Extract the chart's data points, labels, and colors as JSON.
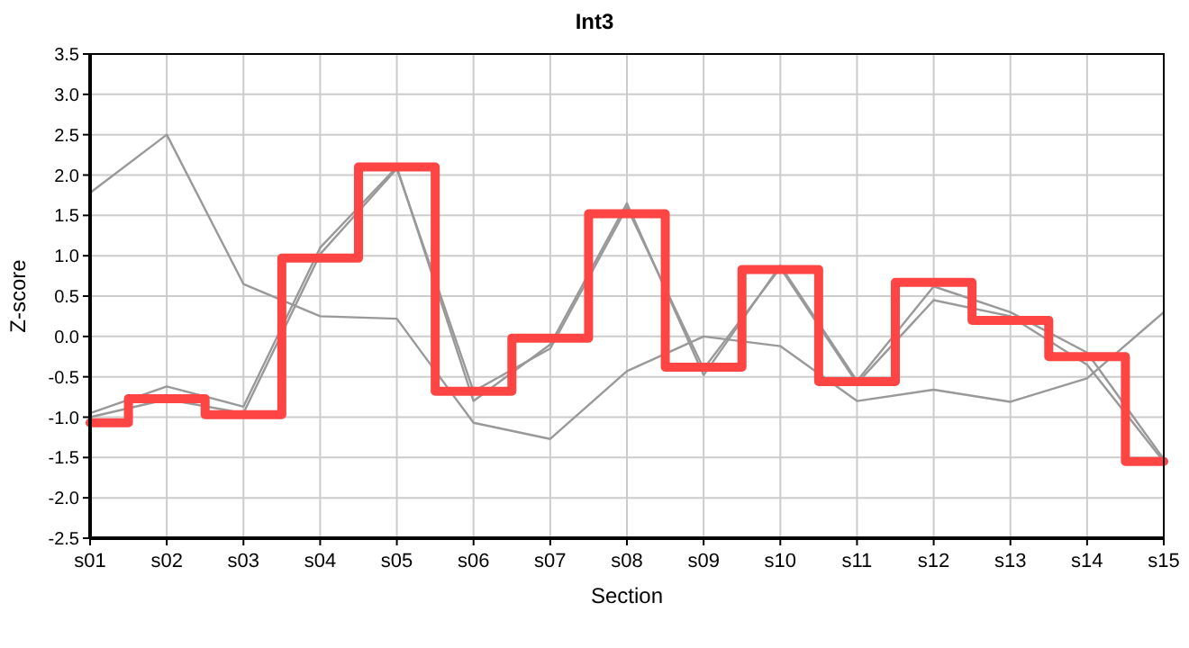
{
  "chart_data": {
    "type": "line",
    "title": "Int3",
    "xlabel": "Section",
    "ylabel": "Z-score",
    "categories": [
      "s01",
      "s02",
      "s03",
      "s04",
      "s05",
      "s06",
      "s07",
      "s08",
      "s09",
      "s10",
      "s11",
      "s12",
      "s13",
      "s14",
      "s15"
    ],
    "series": [
      {
        "color": "#999999",
        "values": [
          1.78,
          2.5,
          0.65,
          0.25,
          0.22,
          -1.07,
          -1.27,
          -0.43,
          0.0,
          -0.12,
          -0.8,
          -0.66,
          -0.81,
          -0.52,
          0.3
        ]
      },
      {
        "color": "#999999",
        "values": [
          -0.95,
          -0.62,
          -0.87,
          1.1,
          2.1,
          -0.8,
          -0.1,
          1.65,
          -0.48,
          0.88,
          -0.55,
          0.62,
          0.3,
          -0.2,
          -1.52
        ]
      },
      {
        "color": "#999999",
        "values": [
          -1.0,
          -0.78,
          -0.95,
          1.02,
          2.08,
          -0.68,
          -0.15,
          1.6,
          -0.4,
          0.85,
          -0.58,
          0.45,
          0.25,
          -0.35,
          -1.55
        ]
      },
      {
        "type": "step",
        "color": "#ff4444",
        "values": [
          -1.07,
          -0.77,
          -0.97,
          0.97,
          2.1,
          -0.68,
          -0.02,
          1.52,
          -0.38,
          0.83,
          -0.56,
          0.67,
          0.2,
          -0.25,
          -1.55
        ]
      }
    ],
    "ylim": [
      -2.5,
      3.5
    ],
    "yticks": [
      -2.5,
      {
        "value": -2,
        "label": "-2.0"
      },
      -1.5,
      {
        "value": -1,
        "label": "-1.0"
      },
      -0.5,
      {
        "value": 0,
        "label": "0.0"
      },
      0.5,
      {
        "value": 1,
        "label": "1.0"
      },
      1.5,
      {
        "value": 2,
        "label": "2.0"
      },
      2.5,
      {
        "value": 3,
        "label": "3.0"
      },
      3.5
    ],
    "grid": true,
    "marker": "none",
    "line_style": "solid"
  }
}
